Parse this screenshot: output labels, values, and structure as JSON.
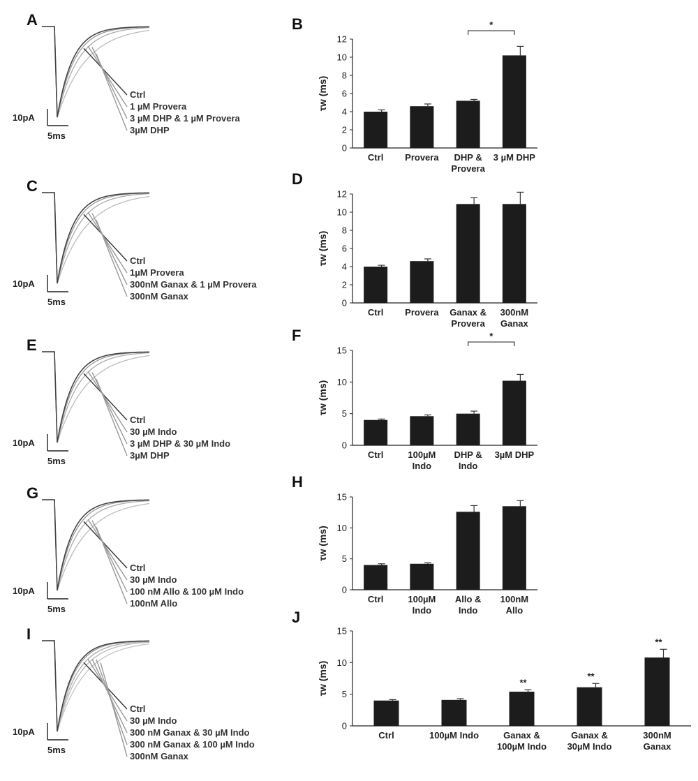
{
  "traces": [
    {
      "label": "A",
      "legend": [
        "Ctrl",
        "1 µM Provera",
        "3 µM DHP & 1 µM Provera",
        "3µM DHP"
      ],
      "scale_y": "10pA",
      "scale_x": "5ms"
    },
    {
      "label": "C",
      "legend": [
        "Ctrl",
        "1µM Provera",
        "300nM Ganax & 1 µM Provera",
        "300nM Ganax"
      ],
      "scale_y": "10pA",
      "scale_x": "5ms"
    },
    {
      "label": "E",
      "legend": [
        "Ctrl",
        "30 µM Indo",
        "3 µM DHP & 30 µM Indo",
        "3µM DHP"
      ],
      "scale_y": "10pA",
      "scale_x": "5ms"
    },
    {
      "label": "G",
      "legend": [
        "Ctrl",
        "30 µM Indo",
        "100 nM Allo & 100 µM Indo",
        "100nM Allo"
      ],
      "scale_y": "10pA",
      "scale_x": "5ms"
    },
    {
      "label": "I",
      "legend": [
        "Ctrl",
        "30 µM Indo",
        "300 nM Ganax & 30 µM Indo",
        "300 nM Ganax & 100 µM Indo",
        "300nM Ganax"
      ],
      "scale_y": "10pA",
      "scale_x": "5ms"
    }
  ],
  "chart_data": [
    {
      "label": "B",
      "type": "bar",
      "categories": [
        [
          "Ctrl"
        ],
        [
          "Provera"
        ],
        [
          "DHP  &",
          "Provera"
        ],
        [
          "3 µM DHP"
        ]
      ],
      "values": [
        4.0,
        4.6,
        5.2,
        10.2
      ],
      "errors": [
        0.2,
        0.25,
        0.15,
        1.0
      ],
      "ylabel": "τw (ms)",
      "ylim": [
        0,
        12
      ],
      "yticks": [
        0,
        2,
        4,
        6,
        8,
        10,
        12
      ],
      "annotations": [
        {
          "type": "bracket",
          "from": 2,
          "to": 3,
          "text": "*"
        }
      ]
    },
    {
      "label": "D",
      "type": "bar",
      "categories": [
        [
          "Ctrl"
        ],
        [
          "Provera"
        ],
        [
          "Ganax  &",
          "Provera"
        ],
        [
          "300nM",
          "Ganax"
        ]
      ],
      "values": [
        4.0,
        4.6,
        10.9,
        10.9
      ],
      "errors": [
        0.15,
        0.25,
        0.7,
        1.3
      ],
      "ylabel": "τw (ms)",
      "ylim": [
        0,
        12
      ],
      "yticks": [
        0,
        2,
        4,
        6,
        8,
        10,
        12
      ],
      "annotations": []
    },
    {
      "label": "F",
      "type": "bar",
      "categories": [
        [
          "Ctrl"
        ],
        [
          "100µM",
          "Indo"
        ],
        [
          "DHP &",
          "Indo"
        ],
        [
          "3µM DHP"
        ]
      ],
      "values": [
        4.0,
        4.6,
        5.0,
        10.2
      ],
      "errors": [
        0.15,
        0.2,
        0.4,
        1.0
      ],
      "ylabel": "τw (ms)",
      "ylim": [
        0,
        15
      ],
      "yticks": [
        0,
        5,
        10,
        15
      ],
      "annotations": [
        {
          "type": "bracket",
          "from": 2,
          "to": 3,
          "text": "*"
        }
      ]
    },
    {
      "label": "H",
      "type": "bar",
      "categories": [
        [
          "Ctrl"
        ],
        [
          "100µM",
          "Indo"
        ],
        [
          "Allo &",
          "Indo"
        ],
        [
          "100nM",
          "Allo"
        ]
      ],
      "values": [
        4.0,
        4.2,
        12.6,
        13.5
      ],
      "errors": [
        0.2,
        0.15,
        1.0,
        0.9
      ],
      "ylabel": "τw (ms)",
      "ylim": [
        0,
        15
      ],
      "yticks": [
        0,
        5,
        10,
        15
      ],
      "annotations": []
    },
    {
      "label": "J",
      "type": "bar",
      "categories": [
        [
          "Ctrl"
        ],
        [
          "100µM Indo"
        ],
        [
          "Ganax  &",
          "100µM Indo"
        ],
        [
          "Ganax &",
          "30µM Indo"
        ],
        [
          "300nM",
          "Ganax"
        ]
      ],
      "values": [
        4.0,
        4.1,
        5.4,
        6.1,
        10.8
      ],
      "errors": [
        0.15,
        0.2,
        0.3,
        0.6,
        1.3
      ],
      "ylabel": "τw (ms)",
      "ylim": [
        0,
        15
      ],
      "yticks": [
        0,
        5,
        10,
        15
      ],
      "annotations": [
        {
          "type": "star",
          "index": 2,
          "text": "**"
        },
        {
          "type": "star",
          "index": 3,
          "text": "**"
        },
        {
          "type": "star",
          "index": 4,
          "text": "**"
        }
      ]
    }
  ]
}
